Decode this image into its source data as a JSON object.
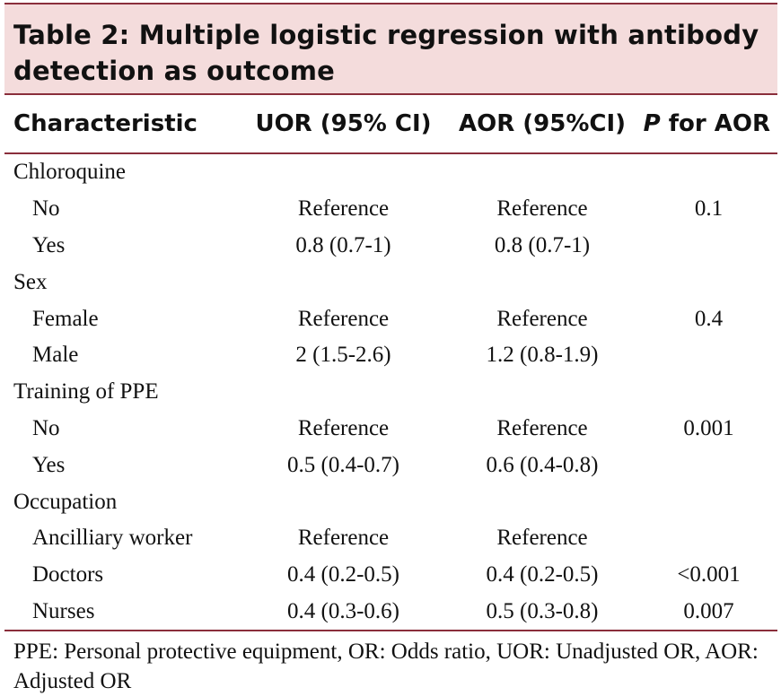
{
  "title": "Table 2: Multiple logistic regression with antibody detection as outcome",
  "header": {
    "col1": "Characteristic",
    "col2": "UOR (95% CI)",
    "col3": "AOR (95%CI)",
    "col4_italic": "P",
    "col4_rest": " for AOR"
  },
  "rows": [
    {
      "label": "Chloroquine",
      "uor": "",
      "aor": "",
      "p": ""
    },
    {
      "label": "No",
      "uor": "Reference",
      "aor": "Reference",
      "p": "0.1"
    },
    {
      "label": "Yes",
      "uor": "0.8 (0.7-1)",
      "aor": "0.8 (0.7-1)",
      "p": ""
    },
    {
      "label": "Sex",
      "uor": "",
      "aor": "",
      "p": ""
    },
    {
      "label": "Female",
      "uor": "Reference",
      "aor": "Reference",
      "p": "0.4"
    },
    {
      "label": "Male",
      "uor": "2 (1.5-2.6)",
      "aor": "1.2 (0.8-1.9)",
      "p": ""
    },
    {
      "label": "Training of PPE",
      "uor": "",
      "aor": "",
      "p": ""
    },
    {
      "label": "No",
      "uor": "Reference",
      "aor": "Reference",
      "p": "0.001"
    },
    {
      "label": "Yes",
      "uor": "0.5 (0.4-0.7)",
      "aor": "0.6 (0.4-0.8)",
      "p": ""
    },
    {
      "label": "Occupation",
      "uor": "",
      "aor": "",
      "p": ""
    },
    {
      "label": "Ancilliary worker",
      "uor": "Reference",
      "aor": "Reference",
      "p": ""
    },
    {
      "label": "Doctors",
      "uor": "0.4 (0.2-0.5)",
      "aor": "0.4 (0.2-0.5)",
      "p": "<0.001"
    },
    {
      "label": "Nurses",
      "uor": "0.4 (0.3-0.6)",
      "aor": "0.5 (0.3-0.8)",
      "p": "0.007"
    }
  ],
  "footnote": "PPE: Personal protective equipment, OR: Odds ratio, UOR: Unadjusted OR, AOR: Adjusted OR"
}
